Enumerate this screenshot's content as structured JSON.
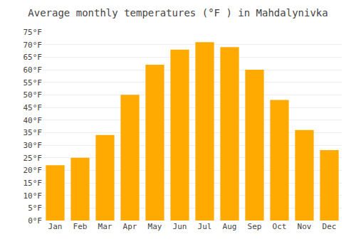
{
  "chart_data": {
    "type": "bar",
    "title": "Average monthly temperatures (°F ) in Mahdalynivka",
    "categories": [
      "Jan",
      "Feb",
      "Mar",
      "Apr",
      "May",
      "Jun",
      "Jul",
      "Aug",
      "Sep",
      "Oct",
      "Nov",
      "Dec"
    ],
    "values": [
      22,
      25,
      34,
      50,
      62,
      68,
      71,
      69,
      60,
      48,
      36,
      28
    ],
    "color": "#FFAA00",
    "ylim": [
      0,
      75
    ],
    "yticks": [
      {
        "value": 0,
        "label": "0°F"
      },
      {
        "value": 5,
        "label": "5°F"
      },
      {
        "value": 10,
        "label": "10°F"
      },
      {
        "value": 15,
        "label": "15°F"
      },
      {
        "value": 20,
        "label": "20°F"
      },
      {
        "value": 25,
        "label": "25°F"
      },
      {
        "value": 30,
        "label": "30°F"
      },
      {
        "value": 35,
        "label": "35°F"
      },
      {
        "value": 40,
        "label": "40°F"
      },
      {
        "value": 45,
        "label": "45°F"
      },
      {
        "value": 50,
        "label": "50°F"
      },
      {
        "value": 55,
        "label": "55°F"
      },
      {
        "value": 60,
        "label": "60°F"
      },
      {
        "value": 65,
        "label": "65°F"
      },
      {
        "value": 70,
        "label": "70°F"
      },
      {
        "value": 75,
        "label": "75°F"
      }
    ],
    "grid": true
  }
}
